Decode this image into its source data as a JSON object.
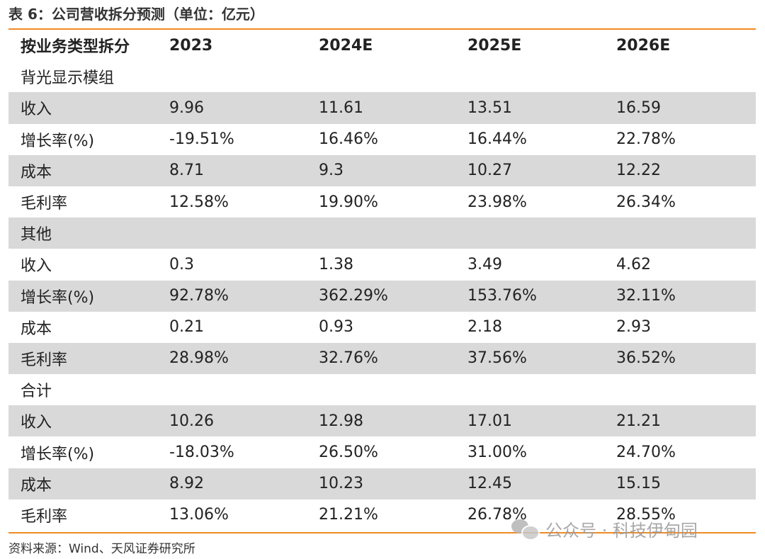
{
  "title": "表 6：公司营收拆分预测（单位：亿元）",
  "table": {
    "headers": [
      "按业务类型拆分",
      "2023",
      "2024E",
      "2025E",
      "2026E"
    ],
    "rows": [
      {
        "cells": [
          "背光显示模组",
          "",
          "",
          "",
          ""
        ]
      },
      {
        "cells": [
          "收入",
          "9.96",
          "11.61",
          "13.51",
          "16.59"
        ]
      },
      {
        "cells": [
          "增长率(%)",
          "-19.51%",
          "16.46%",
          "16.44%",
          "22.78%"
        ]
      },
      {
        "cells": [
          "成本",
          "8.71",
          "9.3",
          "10.27",
          "12.22"
        ]
      },
      {
        "cells": [
          "毛利率",
          "12.58%",
          "19.90%",
          "23.98%",
          "26.34%"
        ]
      },
      {
        "cells": [
          "其他",
          "",
          "",
          "",
          ""
        ]
      },
      {
        "cells": [
          "收入",
          "0.3",
          "1.38",
          "3.49",
          "4.62"
        ]
      },
      {
        "cells": [
          "增长率(%)",
          "92.78%",
          "362.29%",
          "153.76%",
          "32.11%"
        ]
      },
      {
        "cells": [
          "成本",
          "0.21",
          "0.93",
          "2.18",
          "2.93"
        ]
      },
      {
        "cells": [
          "毛利率",
          "28.98%",
          "32.76%",
          "37.56%",
          "36.52%"
        ]
      },
      {
        "cells": [
          "合计",
          "",
          "",
          "",
          ""
        ]
      },
      {
        "cells": [
          "收入",
          "10.26",
          "12.98",
          "17.01",
          "21.21"
        ]
      },
      {
        "cells": [
          "增长率(%)",
          "-18.03%",
          "26.50%",
          "31.00%",
          "24.70%"
        ]
      },
      {
        "cells": [
          "成本",
          "8.92",
          "10.23",
          "12.45",
          "15.15"
        ]
      },
      {
        "cells": [
          "毛利率",
          "13.06%",
          "21.21%",
          "26.78%",
          "28.55%"
        ]
      }
    ]
  },
  "source": "资料来源：Wind、天风证券研究所",
  "watermark": {
    "text": "公众号 · 科技伊甸园",
    "icon": "wechat-icon"
  },
  "colors": {
    "accent_rule": "#f08a24",
    "row_shade": "#d9d9d9"
  }
}
